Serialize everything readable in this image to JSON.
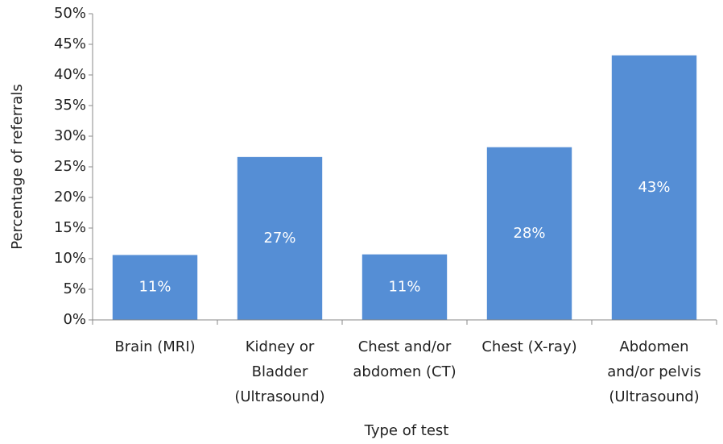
{
  "chart_data": {
    "type": "bar",
    "y_label": "Percentage of referrals",
    "x_label": "Type of test",
    "categories": [
      "Brain (MRI)",
      "Kidney or Bladder (Ultrasound)",
      "Chest and/or abdomen (CT)",
      "Chest (X-ray)",
      "Abdomen and/or pelvis (Ultrasound)"
    ],
    "values": [
      10.6,
      26.6,
      10.7,
      28.2,
      43.2
    ],
    "value_labels": [
      "11%",
      "27%",
      "11%",
      "28%",
      "43%"
    ],
    "color": "#558ed5",
    "ylim": [
      0,
      50
    ],
    "yticks": [
      {
        "value": 0,
        "label": "0%"
      },
      {
        "value": 5,
        "label": "5%"
      },
      {
        "value": 10,
        "label": "10%"
      },
      {
        "value": 15,
        "label": "15%"
      },
      {
        "value": 20,
        "label": "20%"
      },
      {
        "value": 25,
        "label": "25%"
      },
      {
        "value": 30,
        "label": "30%"
      },
      {
        "value": 35,
        "label": "35%"
      },
      {
        "value": 40,
        "label": "40%"
      },
      {
        "value": 45,
        "label": "45%"
      },
      {
        "value": 50,
        "label": "50%"
      }
    ],
    "grid": false
  }
}
